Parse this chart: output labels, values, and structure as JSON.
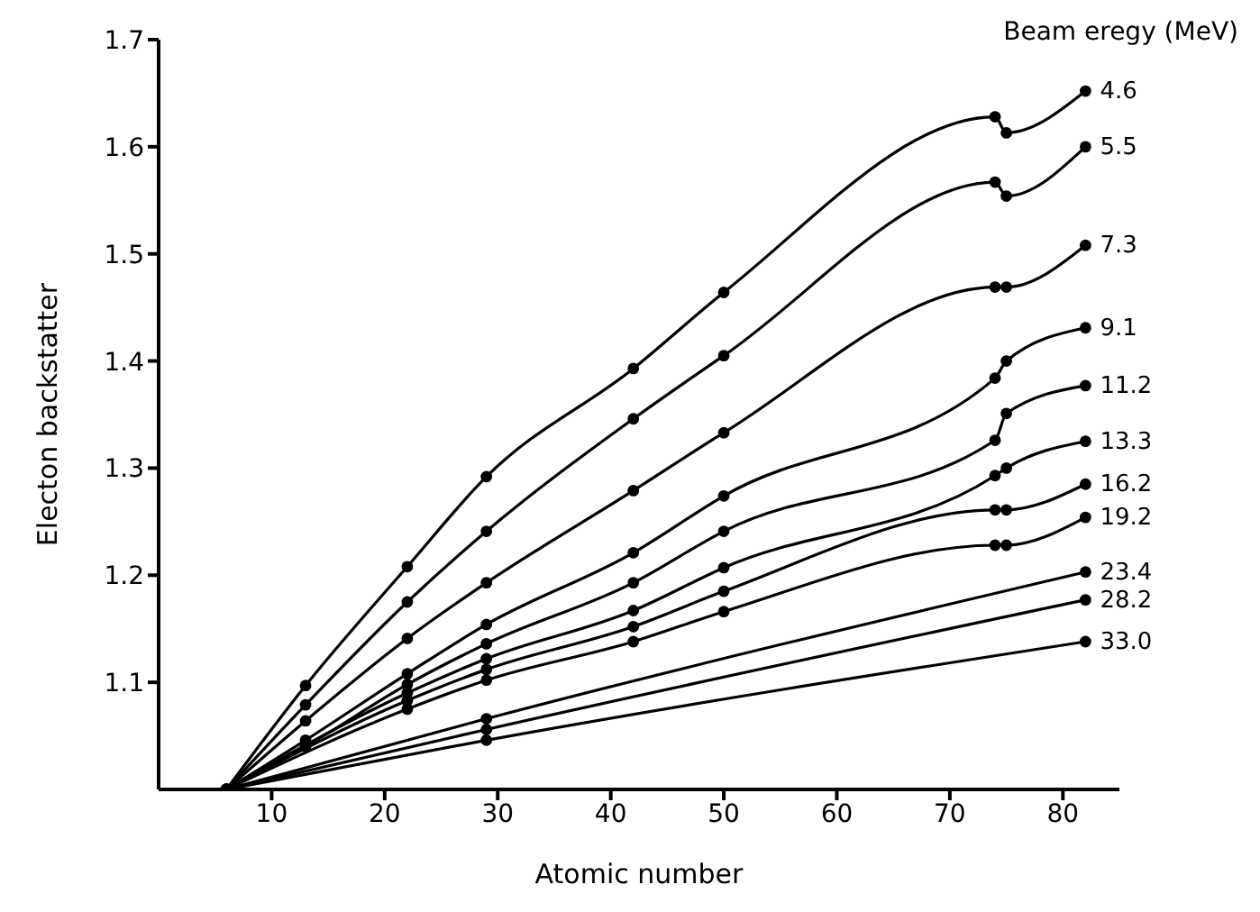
{
  "chart_data": {
    "type": "line",
    "xlabel": "Atomic number",
    "ylabel": "Electon backstatter",
    "legend_title": "Beam eregy (MeV)",
    "xlim": [
      0,
      85
    ],
    "xticks": [
      10,
      20,
      30,
      40,
      50,
      60,
      70,
      80
    ],
    "ylim": [
      1.0,
      1.7
    ],
    "yticks": [
      1.1,
      1.2,
      1.3,
      1.4,
      1.5,
      1.6,
      1.7
    ],
    "marker": "circle",
    "line_style": "solid",
    "series": [
      {
        "name": "4.6",
        "color": "#000000",
        "x": [
          6,
          13,
          22,
          29,
          42,
          50,
          74,
          75,
          82
        ],
        "values": [
          1.0,
          1.097,
          1.208,
          1.292,
          1.393,
          1.464,
          1.628,
          1.613,
          1.652
        ]
      },
      {
        "name": "5.5",
        "color": "#000000",
        "x": [
          6,
          13,
          22,
          29,
          42,
          50,
          74,
          75,
          82
        ],
        "values": [
          1.0,
          1.079,
          1.175,
          1.241,
          1.346,
          1.405,
          1.567,
          1.554,
          1.6
        ]
      },
      {
        "name": "7.3",
        "color": "#000000",
        "x": [
          6,
          13,
          22,
          29,
          42,
          50,
          74,
          75,
          82
        ],
        "values": [
          1.0,
          1.064,
          1.141,
          1.193,
          1.279,
          1.333,
          1.469,
          1.469,
          1.508
        ]
      },
      {
        "name": "9.1",
        "color": "#000000",
        "x": [
          6,
          13,
          22,
          29,
          42,
          50,
          74,
          75,
          82
        ],
        "values": [
          1.0,
          1.046,
          1.108,
          1.154,
          1.221,
          1.274,
          1.384,
          1.4,
          1.431
        ]
      },
      {
        "name": "11.2",
        "color": "#000000",
        "x": [
          6,
          13,
          22,
          29,
          42,
          50,
          74,
          75,
          82
        ],
        "values": [
          1.0,
          1.04,
          1.098,
          1.136,
          1.193,
          1.241,
          1.326,
          1.351,
          1.377
        ]
      },
      {
        "name": "13.3",
        "color": "#000000",
        "x": [
          6,
          22,
          29,
          42,
          50,
          74,
          75,
          82
        ],
        "values": [
          1.0,
          1.09,
          1.122,
          1.167,
          1.207,
          1.293,
          1.3,
          1.325
        ]
      },
      {
        "name": "16.2",
        "color": "#000000",
        "x": [
          6,
          22,
          29,
          42,
          50,
          74,
          75,
          82
        ],
        "values": [
          1.0,
          1.083,
          1.112,
          1.152,
          1.185,
          1.261,
          1.261,
          1.285
        ]
      },
      {
        "name": "19.2",
        "color": "#000000",
        "x": [
          6,
          22,
          29,
          42,
          50,
          74,
          75,
          82
        ],
        "values": [
          1.0,
          1.075,
          1.102,
          1.138,
          1.166,
          1.228,
          1.228,
          1.254
        ]
      },
      {
        "name": "23.4",
        "color": "#000000",
        "x": [
          6,
          29,
          82
        ],
        "values": [
          1.0,
          1.066,
          1.203
        ]
      },
      {
        "name": "28.2",
        "color": "#000000",
        "x": [
          6,
          29,
          82
        ],
        "values": [
          1.0,
          1.056,
          1.177
        ]
      },
      {
        "name": "33.0",
        "color": "#000000",
        "x": [
          6,
          29,
          82
        ],
        "values": [
          1.0,
          1.046,
          1.138
        ]
      }
    ]
  }
}
